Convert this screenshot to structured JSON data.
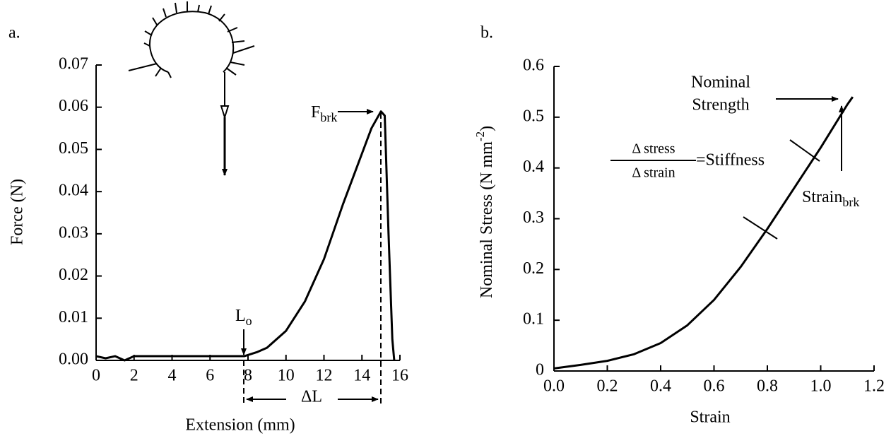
{
  "chart_data": [
    {
      "type": "line",
      "panel_label": "a.",
      "xlabel": "Extension (mm)",
      "ylabel": "Force (N)",
      "xlim": [
        0,
        16
      ],
      "ylim": [
        0,
        0.07
      ],
      "xticks": [
        0,
        2,
        4,
        6,
        8,
        10,
        12,
        14,
        16
      ],
      "yticks": [
        {
          "value": 0,
          "label": "0.00"
        },
        0.01,
        0.02,
        0.03,
        0.04,
        0.05,
        0.06,
        0.07
      ],
      "color": "#000000",
      "x": [
        0,
        0.5,
        1,
        1.5,
        2,
        4,
        6,
        7.8,
        8.5,
        9,
        10,
        11,
        12,
        13,
        14,
        14.5,
        15,
        15.2,
        15.4,
        15.6,
        15.7
      ],
      "values": [
        0.001,
        0.0005,
        0.001,
        0,
        0.001,
        0.001,
        0.001,
        0.001,
        0.002,
        0.003,
        0.007,
        0.014,
        0.024,
        0.037,
        0.049,
        0.055,
        0.059,
        0.058,
        0.03,
        0.005,
        0
      ],
      "annotations": {
        "peak": {
          "text": "F",
          "sub": "brk"
        },
        "onset": {
          "text": "L",
          "sub": "o"
        },
        "extension": "ΔL"
      }
    },
    {
      "type": "line",
      "panel_label": "b.",
      "xlabel": "Strain",
      "ylabel": {
        "text": "Nominal Stress (N mm",
        "sup": "-2",
        "end": ")"
      },
      "xlim": [
        0,
        1.2
      ],
      "ylim": [
        0,
        0.6
      ],
      "xticks": [
        {
          "value": 0,
          "label": "0.0"
        },
        0.2,
        0.4,
        0.6,
        0.8,
        {
          "value": 1,
          "label": "1.0"
        },
        1.2
      ],
      "yticks": [
        0,
        0.1,
        0.2,
        0.3,
        0.4,
        0.5,
        0.6
      ],
      "color": "#000000",
      "x": [
        0,
        0.1,
        0.2,
        0.3,
        0.4,
        0.5,
        0.6,
        0.7,
        0.8,
        0.9,
        1.0,
        1.1,
        1.12
      ],
      "values": [
        0.005,
        0.012,
        0.02,
        0.033,
        0.055,
        0.09,
        0.14,
        0.205,
        0.28,
        0.36,
        0.44,
        0.525,
        0.54
      ],
      "annotations": {
        "strength": [
          "Nominal",
          "Strength"
        ],
        "stiffness_num": "Δ stress",
        "stiffness_den": "Δ strain",
        "stiffness": "=Stiffness",
        "breaking_strain": {
          "text": "Strain",
          "sub": "brk"
        }
      }
    }
  ]
}
